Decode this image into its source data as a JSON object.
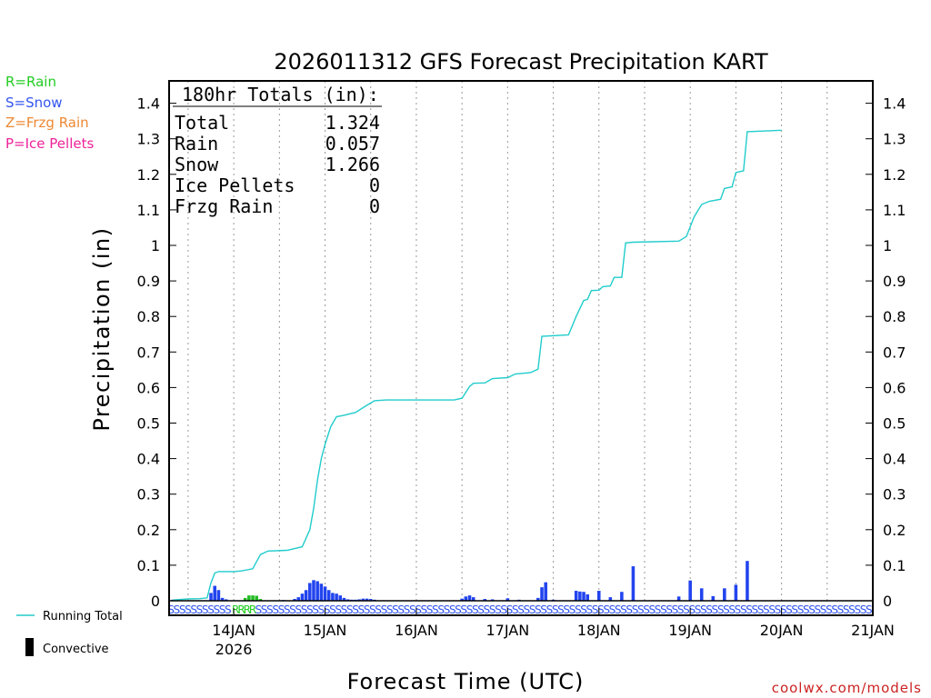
{
  "chart_data": {
    "type": "line",
    "title": "2026011312 GFS Forecast Precipitation KART",
    "xlabel": "Forecast Time (UTC)",
    "ylabel": "Precipitation (in)",
    "ylim": [
      0,
      1.45
    ],
    "yticks": [
      "0",
      "0.1",
      "0.2",
      "0.3",
      "0.4",
      "0.5",
      "0.6",
      "0.7",
      "0.8",
      "0.9",
      "1",
      "1.1",
      "1.2",
      "1.3",
      "1.4"
    ],
    "xlim_hours": [
      -5,
      180
    ],
    "xticks": [
      {
        "hour": 12,
        "label": "14JAN",
        "sublabel": "2026"
      },
      {
        "hour": 36,
        "label": "15JAN",
        "sublabel": ""
      },
      {
        "hour": 60,
        "label": "16JAN",
        "sublabel": ""
      },
      {
        "hour": 84,
        "label": "17JAN",
        "sublabel": ""
      },
      {
        "hour": 108,
        "label": "18JAN",
        "sublabel": ""
      },
      {
        "hour": 132,
        "label": "19JAN",
        "sublabel": ""
      },
      {
        "hour": 156,
        "label": "20JAN",
        "sublabel": ""
      },
      {
        "hour": 180,
        "label": "21JAN",
        "sublabel": ""
      }
    ],
    "type_legend": [
      {
        "label": "R=Rain",
        "color": "#22cc22"
      },
      {
        "label": "S=Snow",
        "color": "#3355ee"
      },
      {
        "label": "Z=Frzg Rain",
        "color": "#ee8833"
      },
      {
        "label": "P=Ice Pellets",
        "color": "#ee2299"
      }
    ],
    "totals_box": {
      "header": "180hr Totals (in):",
      "rows": [
        {
          "label": "Total",
          "value": "1.324"
        },
        {
          "label": "Rain",
          "value": "0.057"
        },
        {
          "label": "Snow",
          "value": "1.266"
        },
        {
          "label": "Ice Pellets",
          "value": "0"
        },
        {
          "label": "Frzg Rain",
          "value": "0"
        }
      ]
    },
    "series": [
      {
        "name": "Running Total",
        "color": "#22cccc",
        "points": [
          [
            -4,
            0.002
          ],
          [
            0,
            0.005
          ],
          [
            3,
            0.006
          ],
          [
            5,
            0.008
          ],
          [
            6,
            0.05
          ],
          [
            7,
            0.078
          ],
          [
            8,
            0.082
          ],
          [
            12,
            0.082
          ],
          [
            14,
            0.084
          ],
          [
            17,
            0.09
          ],
          [
            19,
            0.13
          ],
          [
            21,
            0.14
          ],
          [
            26,
            0.142
          ],
          [
            30,
            0.152
          ],
          [
            32,
            0.2
          ],
          [
            33,
            0.26
          ],
          [
            34,
            0.34
          ],
          [
            35,
            0.4
          ],
          [
            36,
            0.44
          ],
          [
            37.5,
            0.49
          ],
          [
            39,
            0.518
          ],
          [
            41,
            0.522
          ],
          [
            44,
            0.53
          ],
          [
            47,
            0.55
          ],
          [
            49,
            0.563
          ],
          [
            52,
            0.565
          ],
          [
            70,
            0.565
          ],
          [
            72,
            0.57
          ],
          [
            74,
            0.603
          ],
          [
            75,
            0.612
          ],
          [
            78,
            0.613
          ],
          [
            80,
            0.625
          ],
          [
            84,
            0.628
          ],
          [
            86,
            0.638
          ],
          [
            90,
            0.642
          ],
          [
            92,
            0.652
          ],
          [
            93,
            0.744
          ],
          [
            100,
            0.748
          ],
          [
            102,
            0.8
          ],
          [
            104,
            0.845
          ],
          [
            105,
            0.848
          ],
          [
            106,
            0.873
          ],
          [
            108,
            0.874
          ],
          [
            109,
            0.884
          ],
          [
            111,
            0.886
          ],
          [
            112,
            0.91
          ],
          [
            114,
            0.91
          ],
          [
            115,
            1.007
          ],
          [
            117,
            1.009
          ],
          [
            129,
            1.012
          ],
          [
            131,
            1.025
          ],
          [
            133,
            1.08
          ],
          [
            135,
            1.115
          ],
          [
            137,
            1.124
          ],
          [
            140,
            1.13
          ],
          [
            141,
            1.16
          ],
          [
            143,
            1.165
          ],
          [
            144,
            1.205
          ],
          [
            146,
            1.21
          ],
          [
            147,
            1.32
          ],
          [
            152,
            1.322
          ],
          [
            156,
            1.324
          ]
        ]
      },
      {
        "name": "Convective",
        "color": "#000000",
        "points": []
      }
    ],
    "bars": {
      "snow_color": "#2244ee",
      "rain_color": "#22bb22",
      "snow": [
        [
          -4,
          0.003
        ],
        [
          -3,
          0.002
        ],
        [
          6,
          0.022
        ],
        [
          7,
          0.042
        ],
        [
          8,
          0.03
        ],
        [
          9,
          0.008
        ],
        [
          10,
          0.004
        ],
        [
          25,
          0.002
        ],
        [
          28,
          0.005
        ],
        [
          29,
          0.01
        ],
        [
          30,
          0.02
        ],
        [
          31,
          0.03
        ],
        [
          32,
          0.05
        ],
        [
          33,
          0.058
        ],
        [
          34,
          0.055
        ],
        [
          35,
          0.048
        ],
        [
          36,
          0.04
        ],
        [
          37,
          0.03
        ],
        [
          38,
          0.022
        ],
        [
          39,
          0.02
        ],
        [
          40,
          0.015
        ],
        [
          41,
          0.008
        ],
        [
          42,
          0.004
        ],
        [
          43,
          0.003
        ],
        [
          44,
          0.003
        ],
        [
          45,
          0.004
        ],
        [
          46,
          0.006
        ],
        [
          47,
          0.006
        ],
        [
          48,
          0.005
        ],
        [
          49,
          0.003
        ],
        [
          72,
          0.006
        ],
        [
          73,
          0.012
        ],
        [
          74,
          0.015
        ],
        [
          75,
          0.01
        ],
        [
          78,
          0.005
        ],
        [
          80,
          0.004
        ],
        [
          84,
          0.007
        ],
        [
          87,
          0.003
        ],
        [
          92,
          0.008
        ],
        [
          93,
          0.038
        ],
        [
          94,
          0.052
        ],
        [
          96,
          0.003
        ],
        [
          102,
          0.028
        ],
        [
          103,
          0.026
        ],
        [
          104,
          0.025
        ],
        [
          105,
          0.018
        ],
        [
          108,
          0.028
        ],
        [
          111,
          0.01
        ],
        [
          114,
          0.025
        ],
        [
          117,
          0.097
        ],
        [
          129,
          0.012
        ],
        [
          132,
          0.057
        ],
        [
          135,
          0.035
        ],
        [
          138,
          0.013
        ],
        [
          141,
          0.035
        ],
        [
          144,
          0.045
        ],
        [
          147,
          0.112
        ]
      ],
      "rain": [
        [
          15,
          0.008
        ],
        [
          16,
          0.015
        ],
        [
          17,
          0.015
        ],
        [
          18,
          0.014
        ],
        [
          19,
          0.005
        ]
      ]
    },
    "ptype_strip": [
      {
        "from_hour": -5,
        "to_hour": 12,
        "code": "S",
        "color": "#3355ee"
      },
      {
        "from_hour": 12,
        "to_hour": 18,
        "code": "R",
        "color": "#22cc22"
      },
      {
        "from_hour": 18,
        "to_hour": 180,
        "code": "S",
        "color": "#3355ee"
      }
    ]
  },
  "legend": {
    "running_total": "Running Total",
    "convective": "Convective"
  },
  "credit": "coolwx.com/models"
}
